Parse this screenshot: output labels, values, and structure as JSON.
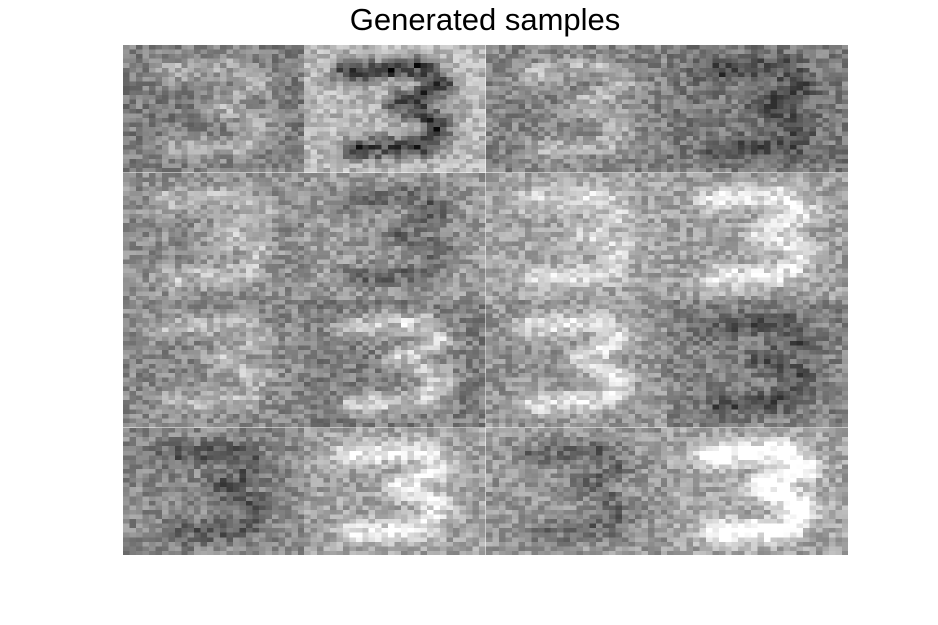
{
  "figure": {
    "title": "Generated samples"
  },
  "grid": {
    "rows": 4,
    "cols": 4,
    "pixels_per_sample": 28,
    "colormap": "gray",
    "samples": [
      {
        "row": 1,
        "col": 1,
        "digit": "3",
        "contrast": "low",
        "base_gray": "#7f7f7f"
      },
      {
        "row": 1,
        "col": 2,
        "digit": "3",
        "contrast": "high",
        "base_gray": "#b8b8b8"
      },
      {
        "row": 1,
        "col": 3,
        "digit": "3",
        "contrast": "low",
        "base_gray": "#858585"
      },
      {
        "row": 1,
        "col": 4,
        "digit": "3",
        "contrast": "low",
        "base_gray": "#7c7c7c"
      },
      {
        "row": 2,
        "col": 1,
        "digit": "3",
        "contrast": "low",
        "base_gray": "#8f8f8f"
      },
      {
        "row": 2,
        "col": 2,
        "digit": "3",
        "contrast": "low",
        "base_gray": "#9a9a9a"
      },
      {
        "row": 2,
        "col": 3,
        "digit": "3",
        "contrast": "low",
        "base_gray": "#a5a5a5"
      },
      {
        "row": 2,
        "col": 4,
        "digit": "3",
        "contrast": "medium",
        "base_gray": "#a0a0a0"
      },
      {
        "row": 3,
        "col": 1,
        "digit": "3",
        "contrast": "low",
        "base_gray": "#8a8a8a"
      },
      {
        "row": 3,
        "col": 2,
        "digit": "3",
        "contrast": "medium",
        "base_gray": "#808080"
      },
      {
        "row": 3,
        "col": 3,
        "digit": "3",
        "contrast": "medium",
        "base_gray": "#959595"
      },
      {
        "row": 3,
        "col": 4,
        "digit": "3",
        "contrast": "low",
        "base_gray": "#858585"
      },
      {
        "row": 4,
        "col": 1,
        "digit": "3",
        "contrast": "low",
        "base_gray": "#8a8a8a"
      },
      {
        "row": 4,
        "col": 2,
        "digit": "3",
        "contrast": "medium",
        "base_gray": "#a2a2a2"
      },
      {
        "row": 4,
        "col": 3,
        "digit": "3",
        "contrast": "low",
        "base_gray": "#999999"
      },
      {
        "row": 4,
        "col": 4,
        "digit": "3",
        "contrast": "high",
        "base_gray": "#a5a5a5"
      }
    ]
  }
}
